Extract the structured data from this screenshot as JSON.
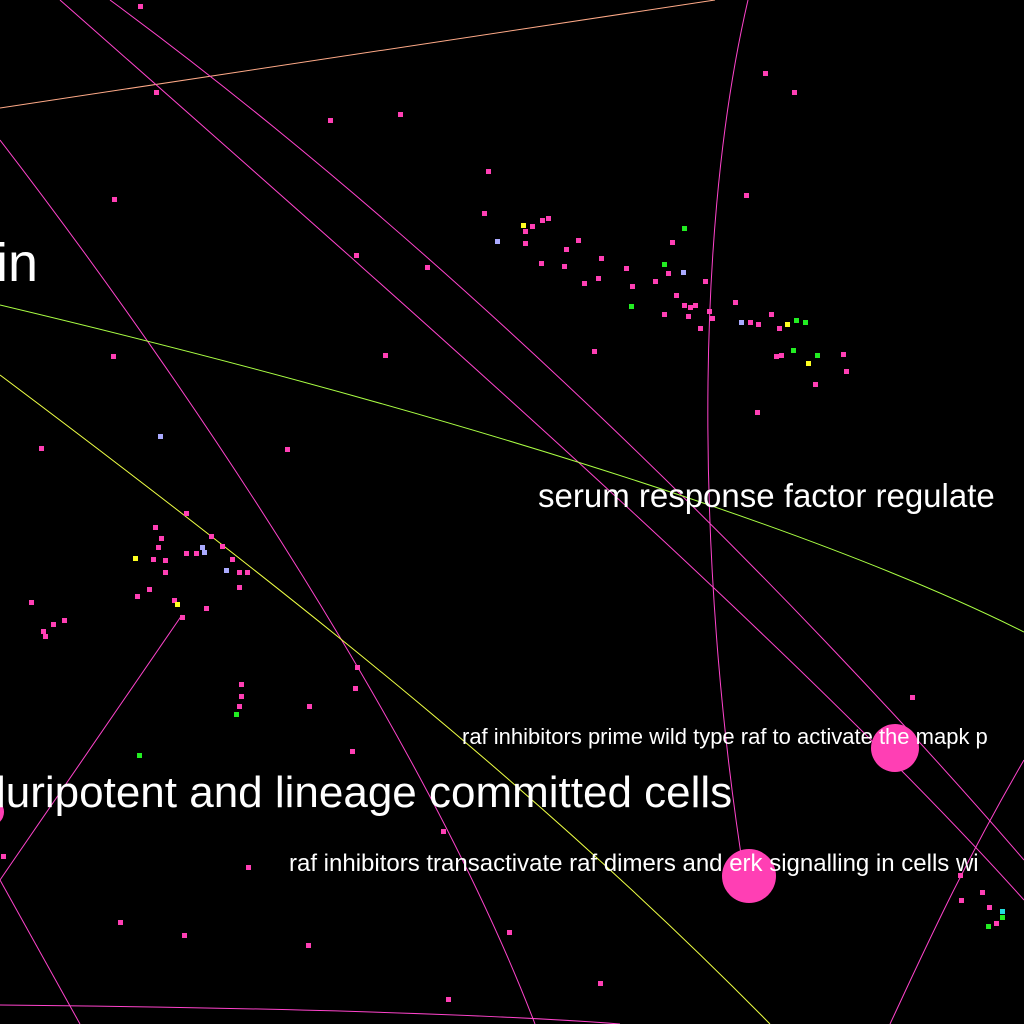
{
  "graph": {
    "background": "#000000",
    "labels": [
      {
        "id": "lbl-in",
        "text": "in"
      },
      {
        "id": "lbl-srf",
        "text": "serum response factor regulate"
      },
      {
        "id": "lbl-raf-prime",
        "text": "raf inhibitors prime wild type raf to activate the mapk p"
      },
      {
        "id": "lbl-pluri",
        "text": "luripotent and lineage committed cells"
      },
      {
        "id": "lbl-raf-trans",
        "text": "raf inhibitors transactivate raf dimers and erk signalling in cells wi"
      }
    ],
    "colors": {
      "magenta": "#ff3fb4",
      "green": "#22ee22",
      "yellow": "#ffff22",
      "lavender": "#aaaaff",
      "cyan": "#22dddd",
      "edge_magenta": "#ff44cc",
      "edge_orange": "#ffaa88",
      "edge_green": "#aaff44",
      "edge_yellow": "#eeff44"
    }
  }
}
